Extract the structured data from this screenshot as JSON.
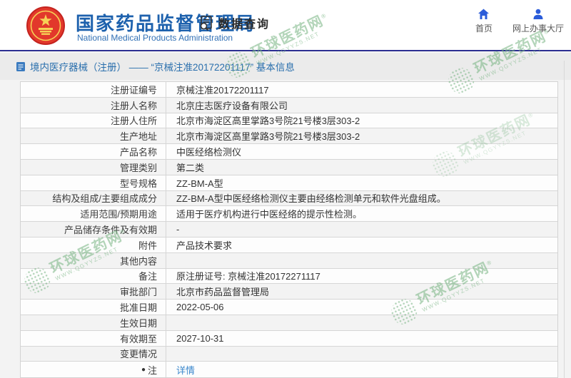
{
  "header": {
    "agency_name_cn": "国家药品监督管理局",
    "agency_name_en": "National Medical Products Administration",
    "data_query_label": "数据查询",
    "nav": [
      {
        "label": "首页",
        "icon": "home-icon"
      },
      {
        "label": "网上办事大厅",
        "icon": "person-icon"
      }
    ]
  },
  "breadcrumb": {
    "title": "境内医疗器械（注册） —— “京械注准20172201117” 基本信息"
  },
  "table": {
    "rows": [
      {
        "label": "注册证编号",
        "value": "京械注准20172201117"
      },
      {
        "label": "注册人名称",
        "value": "北京庄志医疗设备有限公司"
      },
      {
        "label": "注册人住所",
        "value": "北京市海淀区高里掌路3号院21号楼3层303-2"
      },
      {
        "label": "生产地址",
        "value": "北京市海淀区高里掌路3号院21号楼3层303-2"
      },
      {
        "label": "产品名称",
        "value": "中医经络检测仪"
      },
      {
        "label": "管理类别",
        "value": "第二类"
      },
      {
        "label": "型号规格",
        "value": "ZZ-BM-A型"
      },
      {
        "label": "结构及组成/主要组成成分",
        "value": "ZZ-BM-A型中医经络检测仪主要由经络检测单元和软件光盘组成。"
      },
      {
        "label": "适用范围/预期用途",
        "value": "适用于医疗机构进行中医经络的提示性检测。"
      },
      {
        "label": "产品储存条件及有效期",
        "value": "-"
      },
      {
        "label": "附件",
        "value": "产品技术要求"
      },
      {
        "label": "其他内容",
        "value": ""
      },
      {
        "label": "备注",
        "value": "原注册证号: 京械注准20172271117"
      },
      {
        "label": "审批部门",
        "value": "北京市药品监督管理局"
      },
      {
        "label": "批准日期",
        "value": "2022-05-06"
      },
      {
        "label": "生效日期",
        "value": ""
      },
      {
        "label": "有效期至",
        "value": "2027-10-31"
      },
      {
        "label": "变更情况",
        "value": ""
      },
      {
        "label": "注",
        "value": "详情",
        "link": true,
        "pin": true
      }
    ]
  },
  "watermark": {
    "text": "环球医药网",
    "reg_mark": "®",
    "sub": "WWW.QGYYZS.NET"
  },
  "colors": {
    "agency_blue": "#1d61ad",
    "navy_rule": "#2b2e92",
    "link_blue": "#3a87cc",
    "nav_icon_blue": "#2b5cd9",
    "watermark_green": "#74b280",
    "strip_gray": "#ebebeb"
  }
}
